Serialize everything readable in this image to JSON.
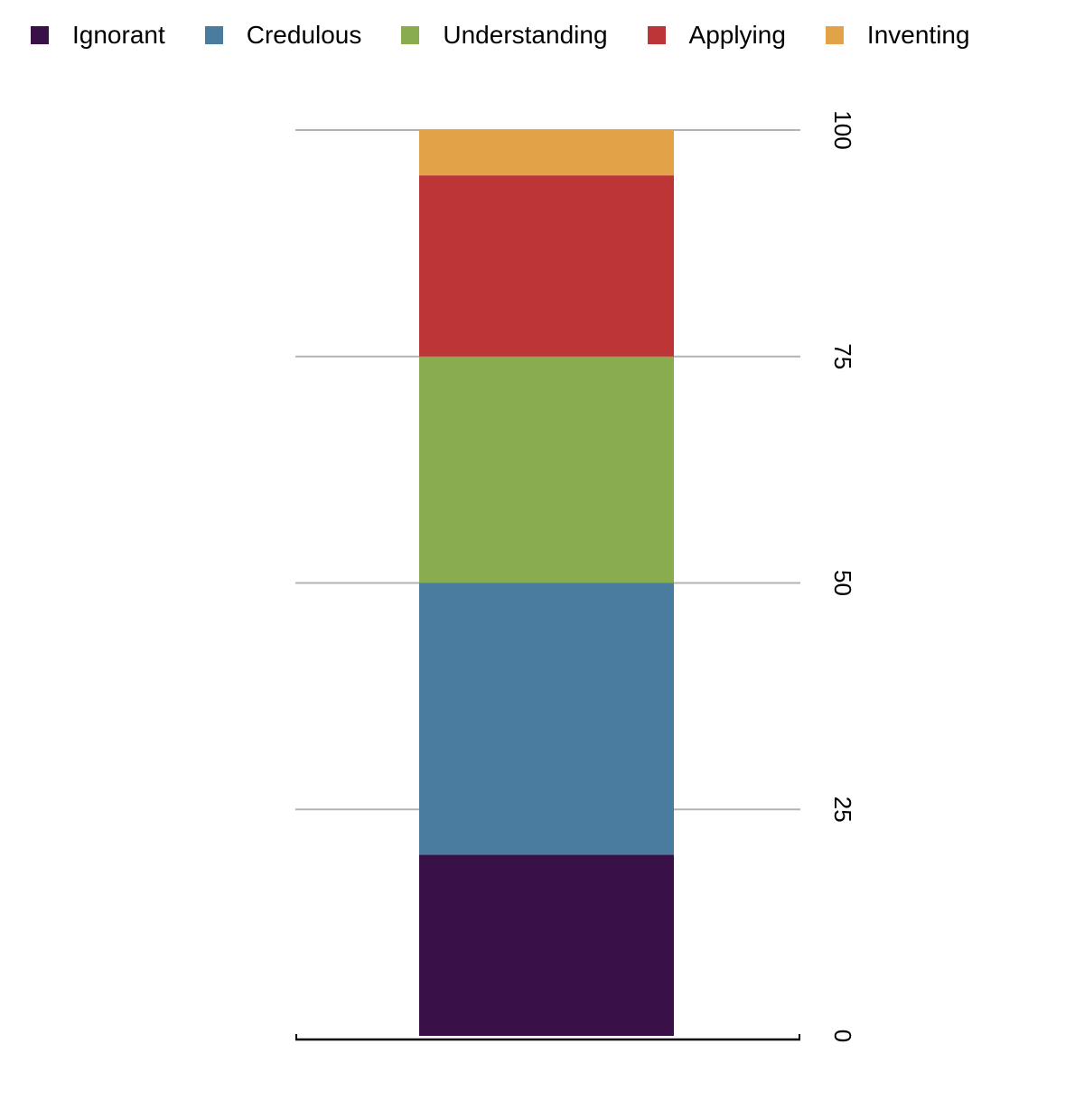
{
  "chart_data": {
    "type": "bar",
    "stacked": true,
    "categories": [
      ""
    ],
    "series": [
      {
        "name": "Ignorant",
        "color": "#3a1048",
        "values": [
          20
        ]
      },
      {
        "name": "Credulous",
        "color": "#4a7ca0",
        "values": [
          30
        ]
      },
      {
        "name": "Understanding",
        "color": "#88ac4e",
        "values": [
          25
        ]
      },
      {
        "name": "Applying",
        "color": "#bd3535",
        "values": [
          20
        ]
      },
      {
        "name": "Inventing",
        "color": "#e2a348",
        "values": [
          5
        ]
      }
    ],
    "title": "",
    "xlabel": "",
    "ylabel": "",
    "ylim": [
      0,
      100
    ],
    "yticks": [
      "0",
      "25",
      "50",
      "75",
      "100"
    ],
    "grid": true,
    "legend_position": "top",
    "y_axis_side": "right",
    "y_tick_labels_rotated": true
  }
}
